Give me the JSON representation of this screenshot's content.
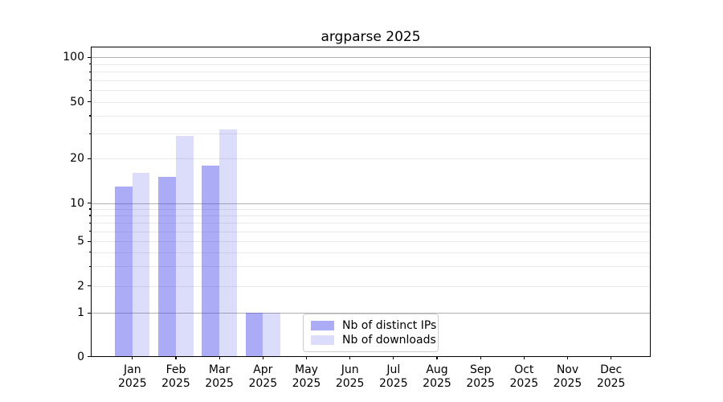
{
  "title": "argparse 2025",
  "legend": {
    "items": [
      {
        "label": "Nb of distinct IPs",
        "color": "rgba(70,70,235,0.45)"
      },
      {
        "label": "Nb of downloads",
        "color": "rgba(70,70,235,0.19)"
      }
    ]
  },
  "colors": {
    "bar_distinct_ips": "rgba(70,70,235,0.45)",
    "bar_downloads": "rgba(70,70,235,0.19)",
    "grid_major": "#b0b0b0",
    "grid_minor": "#e9e9e9",
    "axis": "#000000"
  },
  "chart_data": {
    "type": "bar",
    "title": "argparse 2025",
    "categories": [
      "Jan",
      "Feb",
      "Mar",
      "Apr",
      "May",
      "Jun",
      "Jul",
      "Aug",
      "Sep",
      "Oct",
      "Nov",
      "Dec"
    ],
    "year_label": "2025",
    "series": [
      {
        "name": "Nb of distinct IPs",
        "values": [
          13,
          15,
          18,
          1,
          0,
          0,
          0,
          0,
          0,
          0,
          0,
          0
        ]
      },
      {
        "name": "Nb of downloads",
        "values": [
          16,
          29,
          32,
          1,
          0,
          0,
          0,
          0,
          0,
          0,
          0,
          0
        ]
      }
    ],
    "xlabel": "",
    "ylabel": "",
    "y_axis": {
      "scale": "symlog",
      "ylim": [
        0,
        120
      ],
      "ticks": [
        0,
        1,
        2,
        5,
        10,
        20,
        50,
        100
      ],
      "tick_labels": [
        "0",
        "1",
        "2",
        "5",
        "10",
        "20",
        "50",
        "100"
      ],
      "major_gridlines": [
        1,
        10,
        100
      ],
      "minor_gridlines": [
        2,
        3,
        4,
        5,
        6,
        7,
        8,
        9,
        20,
        30,
        40,
        50,
        60,
        70,
        80,
        90
      ],
      "minor_tick_marks": [
        3,
        4,
        6,
        7,
        8,
        9,
        30,
        40,
        60,
        70,
        80,
        90
      ]
    },
    "grid": true,
    "legend_position": "lower center"
  }
}
